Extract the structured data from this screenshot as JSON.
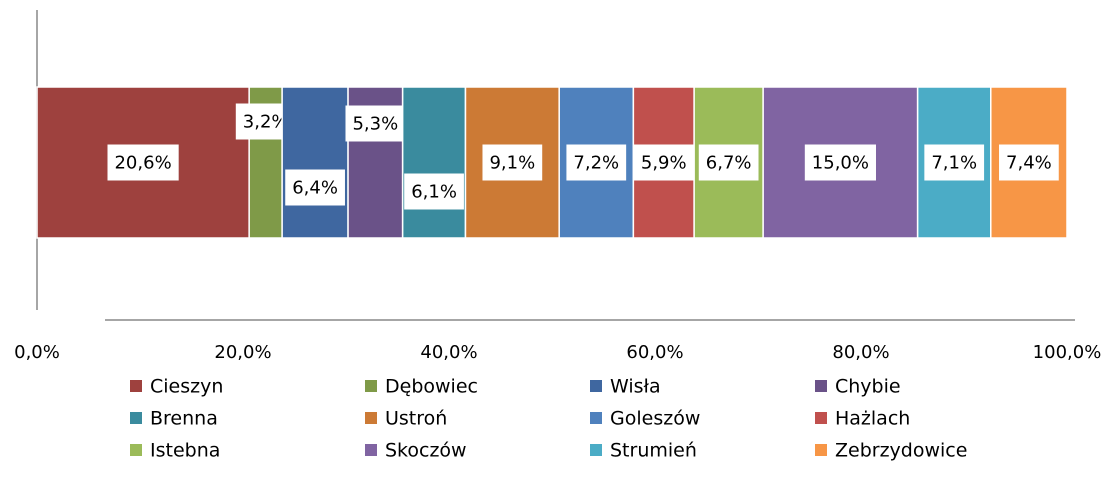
{
  "chart_data": {
    "type": "stacked_bar_horizontal",
    "series": [
      {
        "name": "Cieszyn",
        "color": "#9e413e",
        "values": [
          20.6
        ],
        "value_labels": [
          "20,6%"
        ]
      },
      {
        "name": "Dębowiec",
        "color": "#7f9a48",
        "values": [
          3.2
        ],
        "value_labels": [
          "3,2%"
        ]
      },
      {
        "name": "Wisła",
        "color": "#3f67a0",
        "values": [
          6.4
        ],
        "value_labels": [
          "6,4%"
        ]
      },
      {
        "name": "Chybie",
        "color": "#6a5288",
        "values": [
          5.3
        ],
        "value_labels": [
          "5,3%"
        ]
      },
      {
        "name": "Brenna",
        "color": "#3a8b9e",
        "values": [
          6.1
        ],
        "value_labels": [
          "6,1%"
        ]
      },
      {
        "name": "Ustroń",
        "color": "#cc7a35",
        "values": [
          9.1
        ],
        "value_labels": [
          "9,1%"
        ]
      },
      {
        "name": "Goleszów",
        "color": "#4f81bd",
        "values": [
          7.2
        ],
        "value_labels": [
          "7,2%"
        ]
      },
      {
        "name": "Hażlach",
        "color": "#c0504d",
        "values": [
          5.9
        ],
        "value_labels": [
          "5,9%"
        ]
      },
      {
        "name": "Istebna",
        "color": "#9bbb59",
        "values": [
          6.7
        ],
        "value_labels": [
          "6,7%"
        ]
      },
      {
        "name": "Skoczów",
        "color": "#8064a2",
        "values": [
          15.0
        ],
        "value_labels": [
          "15,0%"
        ]
      },
      {
        "name": "Strumień",
        "color": "#4bacc6",
        "values": [
          7.1
        ],
        "value_labels": [
          "7,1%"
        ]
      },
      {
        "name": "Zebrzydowice",
        "color": "#f79646",
        "values": [
          7.4
        ],
        "value_labels": [
          "7,4%"
        ]
      }
    ],
    "xlim": [
      0,
      100
    ],
    "xticks": [
      {
        "value": 0,
        "label": "0,0%"
      },
      {
        "value": 20,
        "label": "20,0%"
      },
      {
        "value": 40,
        "label": "40,0%"
      },
      {
        "value": 60,
        "label": "60,0%"
      },
      {
        "value": 80,
        "label": "80,0%"
      },
      {
        "value": 100,
        "label": "100,0%"
      }
    ],
    "legend": "bottom"
  }
}
